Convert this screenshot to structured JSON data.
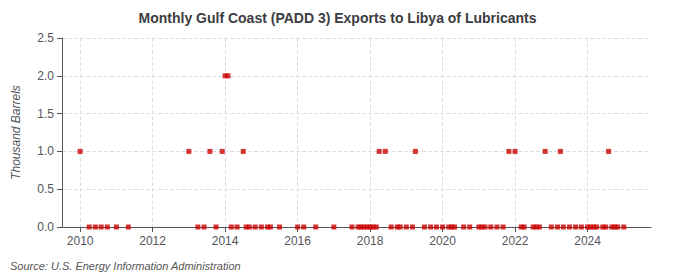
{
  "chart_data": {
    "type": "scatter",
    "title": "Monthly Gulf Coast (PADD 3) Exports to Libya of Lubricants",
    "ylabel": "Thousand Barrels",
    "annotations": [
      "Source: U.S. Energy Information Administration"
    ],
    "color": "#cc0000",
    "marker": "square",
    "grid": true,
    "xlim": [
      2009.5,
      2025.75
    ],
    "xticks": [
      2010,
      2012,
      2014,
      2016,
      2018,
      2020,
      2022,
      2024
    ],
    "ylim": [
      0,
      2.5
    ],
    "yticks": [
      {
        "value": 0,
        "label": "0.0"
      },
      0.5,
      {
        "value": 1,
        "label": "1.0"
      },
      1.5,
      {
        "value": 2,
        "label": "2.0"
      },
      2.5
    ],
    "x": [
      2010.0,
      2010.25,
      2010.42,
      2010.58,
      2010.75,
      2011.0,
      2011.33,
      2013.0,
      2013.25,
      2013.42,
      2013.58,
      2013.75,
      2013.92,
      2014.0,
      2014.08,
      2014.17,
      2014.33,
      2014.5,
      2014.58,
      2014.67,
      2014.83,
      2015.0,
      2015.17,
      2015.25,
      2015.5,
      2016.0,
      2016.17,
      2016.5,
      2017.0,
      2017.5,
      2017.67,
      2017.75,
      2017.83,
      2017.92,
      2018.0,
      2018.08,
      2018.17,
      2018.25,
      2018.42,
      2018.58,
      2018.75,
      2018.83,
      2019.0,
      2019.17,
      2019.25,
      2019.5,
      2019.67,
      2019.83,
      2020.0,
      2020.17,
      2020.25,
      2020.33,
      2020.58,
      2020.75,
      2021.0,
      2021.08,
      2021.17,
      2021.33,
      2021.5,
      2021.67,
      2021.83,
      2022.0,
      2022.17,
      2022.25,
      2022.5,
      2022.58,
      2022.67,
      2022.83,
      2023.0,
      2023.17,
      2023.25,
      2023.33,
      2023.5,
      2023.67,
      2023.83,
      2024.0,
      2024.08,
      2024.17,
      2024.25,
      2024.42,
      2024.5,
      2024.58,
      2024.67,
      2024.75,
      2024.83,
      2025.0
    ],
    "values": [
      1.0,
      0.0,
      0.0,
      0.0,
      0.0,
      0.0,
      0.0,
      1.0,
      0.0,
      0.0,
      1.0,
      0.0,
      1.0,
      2.0,
      2.0,
      0.0,
      0.0,
      1.0,
      0.0,
      0.0,
      0.0,
      0.0,
      0.0,
      0.0,
      0.0,
      0.0,
      0.0,
      0.0,
      0.0,
      0.0,
      0.0,
      0.0,
      0.0,
      0.0,
      0.0,
      0.0,
      0.0,
      1.0,
      1.0,
      0.0,
      0.0,
      0.0,
      0.0,
      0.0,
      1.0,
      0.0,
      0.0,
      0.0,
      0.0,
      0.0,
      0.0,
      0.0,
      0.0,
      0.0,
      0.0,
      0.0,
      0.0,
      0.0,
      0.0,
      0.0,
      1.0,
      1.0,
      0.0,
      0.0,
      0.0,
      0.0,
      0.0,
      1.0,
      0.0,
      0.0,
      1.0,
      0.0,
      0.0,
      0.0,
      0.0,
      0.0,
      0.0,
      0.0,
      0.0,
      0.0,
      0.0,
      1.0,
      0.0,
      0.0,
      0.0,
      0.0
    ]
  }
}
